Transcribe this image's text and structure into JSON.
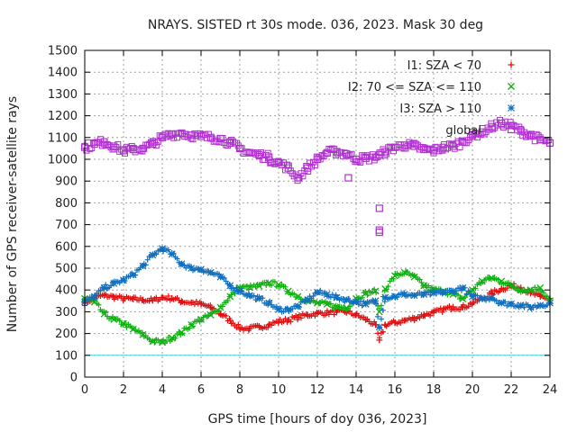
{
  "chart_data": {
    "type": "scatter",
    "title": "NRAYS. SISTED rt 30s mode. 036, 2023. Mask 30 deg",
    "xlabel": "GPS time [hours of doy 036, 2023]",
    "ylabel": "Number of GPS receiver-satellite rays",
    "xlim": [
      0,
      24
    ],
    "ylim": [
      0,
      1500
    ],
    "xticks": [
      0,
      2,
      4,
      6,
      8,
      10,
      12,
      14,
      16,
      18,
      20,
      22,
      24
    ],
    "yticks": [
      0,
      100,
      200,
      300,
      400,
      500,
      600,
      700,
      800,
      900,
      1000,
      1100,
      1200,
      1300,
      1400,
      1500
    ],
    "grid": true,
    "legend_position": "top-right",
    "reference_line": {
      "y": 100,
      "color": "#40d0e0"
    },
    "series": [
      {
        "name": "I1: SZA < 70",
        "marker": "plus",
        "color": "#e01010",
        "x": [
          0,
          0.5,
          1,
          1.5,
          2,
          2.5,
          3,
          3.5,
          4,
          4.5,
          5,
          5.5,
          6,
          6.5,
          7,
          7.5,
          8,
          8.5,
          9,
          9.5,
          10,
          10.5,
          11,
          11.5,
          12,
          12.5,
          13,
          13.5,
          14,
          14.5,
          15,
          15.2,
          15.5,
          16,
          16.5,
          17,
          17.5,
          18,
          18.5,
          19,
          19.5,
          20,
          20.5,
          21,
          21.5,
          22,
          22.5,
          23,
          23.5,
          24
        ],
        "values": [
          340,
          365,
          375,
          368,
          360,
          358,
          355,
          352,
          365,
          362,
          348,
          342,
          335,
          320,
          290,
          260,
          225,
          222,
          230,
          240,
          255,
          262,
          275,
          285,
          292,
          295,
          298,
          300,
          285,
          265,
          240,
          170,
          240,
          250,
          260,
          270,
          285,
          295,
          310,
          322,
          320,
          340,
          360,
          385,
          405,
          420,
          410,
          385,
          370,
          360
        ]
      },
      {
        "name": "I2: 70 <= SZA <= 110",
        "marker": "cross",
        "color": "#10b010",
        "x": [
          0,
          0.5,
          1,
          1.5,
          2,
          2.5,
          3,
          3.5,
          4,
          4.5,
          5,
          5.5,
          6,
          6.5,
          7,
          7.5,
          8,
          8.5,
          9,
          9.5,
          10,
          10.5,
          11,
          11.5,
          12,
          12.5,
          13,
          13.5,
          14,
          14.5,
          15,
          15.2,
          15.5,
          16,
          16.5,
          17,
          17.5,
          18,
          18.5,
          19,
          19.5,
          20,
          20.5,
          21,
          21.5,
          22,
          22.5,
          23,
          23.5,
          24
        ],
        "values": [
          360,
          345,
          290,
          265,
          245,
          220,
          195,
          165,
          160,
          180,
          205,
          240,
          265,
          285,
          320,
          370,
          410,
          412,
          418,
          432,
          425,
          395,
          370,
          350,
          340,
          335,
          322,
          318,
          360,
          385,
          395,
          300,
          405,
          465,
          480,
          460,
          420,
          400,
          395,
          380,
          360,
          400,
          440,
          455,
          440,
          420,
          400,
          400,
          410,
          350
        ]
      },
      {
        "name": "I3: SZA > 110",
        "marker": "star",
        "color": "#1070c0",
        "x": [
          0,
          0.5,
          1,
          1.5,
          2,
          2.5,
          3,
          3.5,
          4,
          4.5,
          5,
          5.5,
          6,
          6.5,
          7,
          7.5,
          8,
          8.5,
          9,
          9.5,
          10,
          10.5,
          11,
          11.5,
          12,
          12.5,
          13,
          13.5,
          14,
          14.5,
          15,
          15.2,
          15.5,
          16,
          16.5,
          17,
          17.5,
          18,
          18.5,
          19,
          19.5,
          20,
          20.5,
          21,
          21.5,
          22,
          22.5,
          23,
          23.5,
          24
        ],
        "values": [
          345,
          370,
          410,
          430,
          445,
          470,
          510,
          560,
          590,
          565,
          520,
          500,
          495,
          480,
          460,
          420,
          395,
          375,
          360,
          340,
          310,
          310,
          325,
          355,
          390,
          380,
          365,
          355,
          345,
          335,
          350,
          230,
          365,
          370,
          380,
          375,
          380,
          385,
          390,
          395,
          410,
          370,
          360,
          365,
          340,
          335,
          330,
          320,
          330,
          340
        ]
      },
      {
        "name": "global",
        "marker": "square",
        "color": "#b030d0",
        "x": [
          0,
          0.5,
          1,
          1.5,
          2,
          2.5,
          3,
          3.5,
          4,
          4.5,
          5,
          5.5,
          6,
          6.5,
          7,
          7.5,
          8,
          8.5,
          9,
          9.5,
          10,
          10.5,
          11,
          11.5,
          12,
          12.5,
          13,
          13.5,
          14,
          14.5,
          15,
          15.2,
          15.5,
          16,
          16.5,
          17,
          17.5,
          18,
          18.5,
          19,
          19.5,
          20,
          20.5,
          21,
          21.5,
          22,
          22.5,
          23,
          23.5,
          24
        ],
        "values": [
          1055,
          1070,
          1080,
          1060,
          1040,
          1045,
          1050,
          1070,
          1100,
          1115,
          1120,
          1110,
          1105,
          1100,
          1095,
          1075,
          1050,
          1030,
          1020,
          1010,
          985,
          960,
          915,
          960,
          1000,
          1030,
          1035,
          1025,
          1000,
          1005,
          1010,
          1020,
          1035,
          1055,
          1065,
          1060,
          1045,
          1040,
          1055,
          1060,
          1080,
          1110,
          1125,
          1150,
          1165,
          1155,
          1130,
          1110,
          1090,
          1075
        ]
      },
      {
        "name": "global outliers",
        "marker": "square",
        "color": "#b030d0",
        "in_legend": false,
        "x": [
          15.2,
          15.2,
          15.2,
          13.6,
          9.6
        ],
        "values": [
          775,
          675,
          665,
          915,
          985
        ]
      }
    ]
  }
}
